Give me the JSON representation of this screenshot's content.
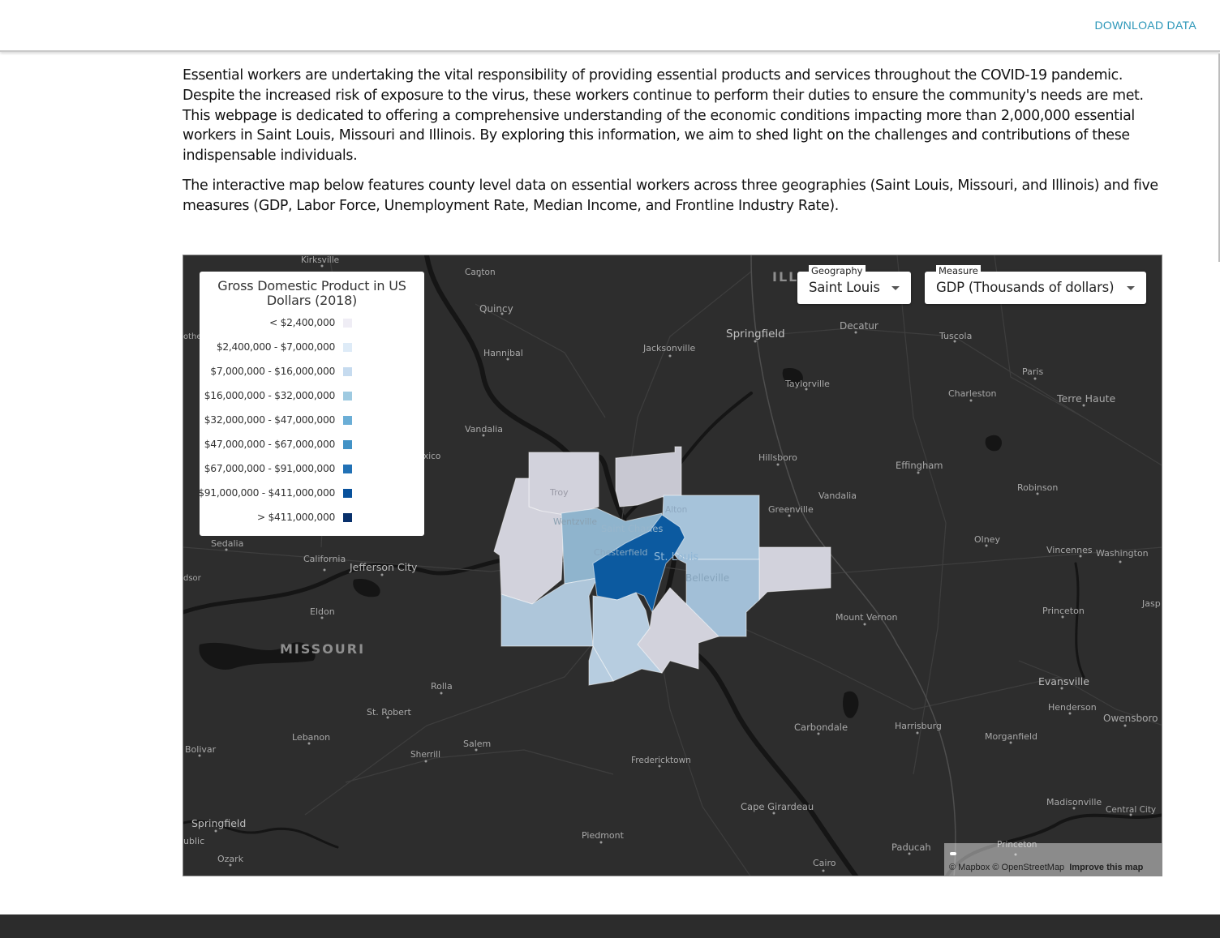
{
  "header": {
    "download_label": "DOWNLOAD DATA"
  },
  "intro": {
    "paragraph_1": "Essential workers are undertaking the vital responsibility of providing essential products and services throughout the COVID-19 pandemic. Despite the increased risk of exposure to the virus, these workers continue to perform their duties to ensure the community's needs are met. This webpage is dedicated to offering a comprehensive understanding of the economic conditions impacting more than 2,000,000 essential workers in Saint Louis, Missouri and Illinois. By exploring this information, we aim to shed light on the challenges and contributions of these indispensable individuals.",
    "paragraph_2": "The interactive map below features county level data on essential workers across three geographies (Saint Louis, Missouri, and Illinois) and five measures (GDP, Labor Force, Unemployment Rate, Median Income, and Frontline Industry Rate)."
  },
  "map": {
    "basemap_colors": {
      "land": "#2d2d2d",
      "water": "#151515",
      "roads": "#3d3d3d",
      "state_border": "#505050"
    },
    "legend": {
      "title": "Gross Domestic Product in US Dollars (2018)",
      "items": [
        {
          "label": "< $2,400,000",
          "color": "#efedf5"
        },
        {
          "label": "$2,400,000 - $7,000,000",
          "color": "#deebf7"
        },
        {
          "label": "$7,000,000 - $16,000,000",
          "color": "#c6dbef"
        },
        {
          "label": "$16,000,000 - $32,000,000",
          "color": "#9ecae1"
        },
        {
          "label": "$32,000,000 - $47,000,000",
          "color": "#6baed6"
        },
        {
          "label": "$47,000,000 - $67,000,000",
          "color": "#4292c6"
        },
        {
          "label": "$67,000,000 - $91,000,000",
          "color": "#2171b5"
        },
        {
          "label": "$91,000,000 - $411,000,000",
          "color": "#08519c"
        },
        {
          "label": "> $411,000,000",
          "color": "#08306b"
        }
      ]
    },
    "geography_select": {
      "label": "Geography",
      "value": "Saint Louis"
    },
    "measure_select": {
      "label": "Measure",
      "value": "GDP (Thousands of dollars)"
    },
    "attribution": {
      "mapbox": "© Mapbox",
      "osm": "© OpenStreetMap",
      "improve": "Improve this map"
    },
    "state_labels": [
      "MISSOURI",
      "ILL"
    ],
    "places": [
      "Kirksville",
      "Canton",
      "Quincy",
      "Hannibal",
      "Jacksonville",
      "Springfield",
      "Decatur",
      "Tuscola",
      "Taylorville",
      "Charleston",
      "Paris",
      "Terre Haute",
      "Vandalia",
      "Hillsboro",
      "Effingham",
      "Robinson",
      "Greenville",
      "Olney",
      "Vincennes",
      "Washington",
      "Troy",
      "Wentzville",
      "Alton",
      "Saint Charles",
      "Chesterfield",
      "St. Louis",
      "Belleville",
      "Sedalia",
      "California",
      "Jefferson City",
      "Eldon",
      "Mount Vernon",
      "Princeton",
      "Evansville",
      "Henderson",
      "Owensboro",
      "Rolla",
      "St. Robert",
      "Lebanon",
      "Salem",
      "Sherrill",
      "Fredericktown",
      "Carbondale",
      "Harrisburg",
      "Morganfield",
      "Bolivar",
      "Springfield",
      "Ozark",
      "Piedmont",
      "Cape Girardeau",
      "Cairo",
      "Paducah",
      "Madisonville",
      "Central City",
      "Jasp",
      "xico",
      "othe",
      "dsor",
      "ublic"
    ]
  }
}
